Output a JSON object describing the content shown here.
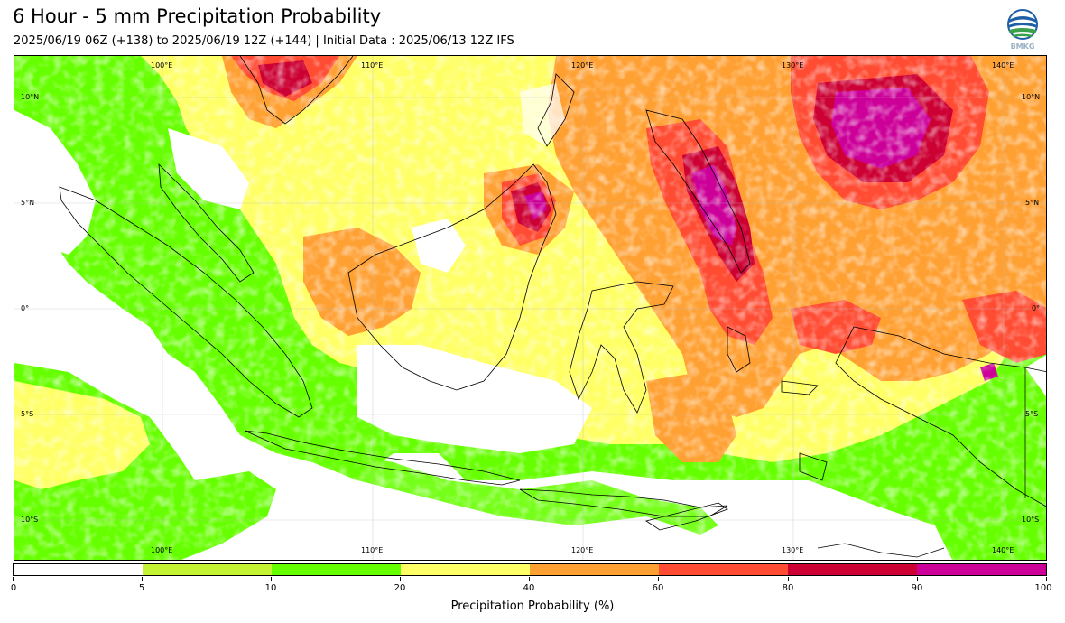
{
  "header": {
    "title": "6 Hour - 5 mm Precipitation Probability",
    "subtitle": "2025/06/19 06Z (+138) to 2025/06/19 12Z (+144) | Initial Data : 2025/06/13 12Z IFS",
    "logo_text": "BMKG"
  },
  "map": {
    "lon_labels": [
      "100°E",
      "110°E",
      "120°E",
      "130°E",
      "140°E"
    ],
    "lat_labels": [
      "10°N",
      "5°N",
      "0°",
      "5°S",
      "10°S"
    ]
  },
  "colorbar": {
    "title": "Precipitation Probability (%)",
    "ticks": [
      "0",
      "5",
      "10",
      "20",
      "40",
      "60",
      "80",
      "90",
      "100"
    ],
    "colors": [
      "#ffffff",
      "#c3f332",
      "#66ff00",
      "#ffff66",
      "#ffa033",
      "#ff4c33",
      "#cc0033",
      "#cc0099"
    ]
  }
}
